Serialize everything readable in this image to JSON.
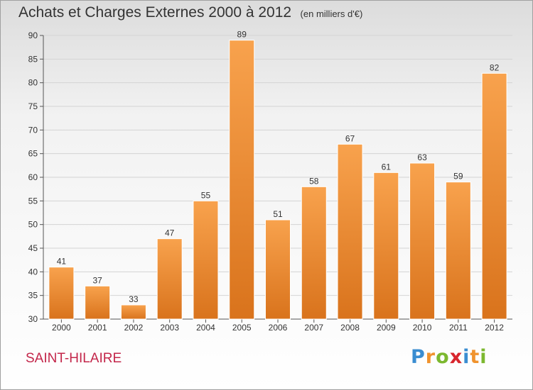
{
  "chart_data": {
    "type": "bar",
    "title": "Achats et Charges Externes 2000 à 2012",
    "subtitle": "(en milliers d'€)",
    "categories": [
      "2000",
      "2001",
      "2002",
      "2003",
      "2004",
      "2005",
      "2006",
      "2007",
      "2008",
      "2009",
      "2010",
      "2011",
      "2012"
    ],
    "values": [
      41,
      37,
      33,
      47,
      55,
      89,
      51,
      58,
      67,
      61,
      63,
      59,
      82
    ],
    "ylim": [
      30,
      90
    ],
    "yticks": [
      30,
      35,
      40,
      45,
      50,
      55,
      60,
      65,
      70,
      75,
      80,
      85,
      90
    ],
    "grid": true,
    "bar_color": "#f0932e"
  },
  "footer": {
    "place_name": "SAINT-HILAIRE"
  },
  "logo": {
    "text": "Proxiti",
    "letters": [
      {
        "ch": "P",
        "color": "#3a8dd1"
      },
      {
        "ch": "r",
        "color": "#f0932e"
      },
      {
        "ch": "o",
        "color": "#7cb82f"
      },
      {
        "ch": "x",
        "color": "#d8262e"
      },
      {
        "ch": "i",
        "color": "#3a8dd1"
      },
      {
        "ch": "t",
        "color": "#f0932e"
      },
      {
        "ch": "i",
        "color": "#7cb82f"
      }
    ]
  }
}
